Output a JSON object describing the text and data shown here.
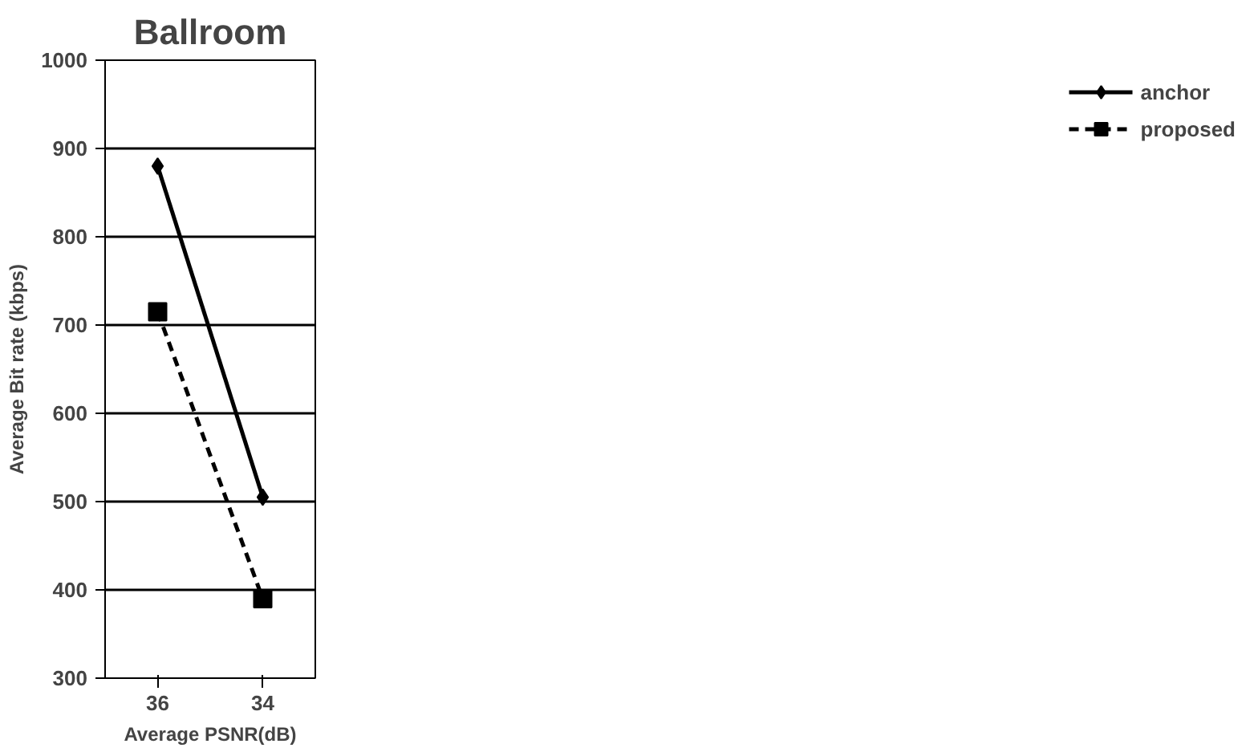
{
  "chart_data": {
    "type": "line",
    "title": "Ballroom",
    "xlabel": "Average PSNR(dB)",
    "ylabel": "Average Bit rate (kbps)",
    "categories": [
      "36",
      "34"
    ],
    "series": [
      {
        "name": "anchor",
        "color": "#000000",
        "values": [
          880,
          505
        ],
        "marker": "diamond",
        "line_style": "solid"
      },
      {
        "name": "proposed",
        "color": "#000000",
        "values": [
          715,
          390
        ],
        "marker": "square",
        "line_style": "dashed"
      }
    ],
    "ylim": [
      300,
      1000
    ],
    "yticks": [
      300,
      400,
      500,
      600,
      700,
      800,
      900,
      1000
    ],
    "grid": "y",
    "legend": "right"
  }
}
